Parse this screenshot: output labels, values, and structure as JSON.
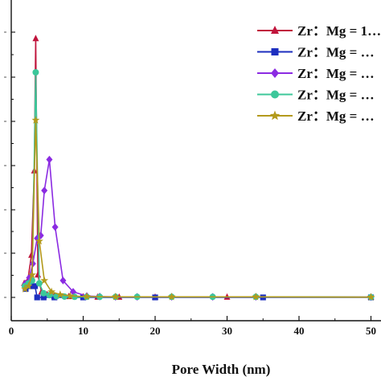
{
  "chart_data": {
    "type": "line",
    "xlabel": "Pore Width (nm)",
    "ylabel": "",
    "xlim": [
      0,
      52
    ],
    "ylim": [
      0,
      100
    ],
    "x_ticks": [
      "0",
      "10",
      "20",
      "30",
      "40",
      "50"
    ],
    "y_ticks": [
      "",
      "",
      "",
      "",
      "",
      "",
      "",
      ""
    ],
    "legend_position": "top-right",
    "grid": false,
    "series": [
      {
        "name": "Zr：Mg = 1…",
        "color": "#c0143c",
        "marker": "triangle",
        "points": [
          [
            1.8,
            5
          ],
          [
            2.3,
            6
          ],
          [
            2.8,
            15
          ],
          [
            3.2,
            45
          ],
          [
            3.4,
            92
          ],
          [
            3.7,
            8
          ],
          [
            4.2,
            2
          ],
          [
            5,
            1
          ],
          [
            6,
            0.5
          ],
          [
            8,
            0.3
          ],
          [
            10,
            0.2
          ],
          [
            12,
            0.1
          ],
          [
            15,
            0.1
          ],
          [
            20,
            0.1
          ],
          [
            30,
            0.1
          ],
          [
            50,
            0.1
          ]
        ]
      },
      {
        "name": "Zr：Mg = …",
        "color": "#1d2fbf",
        "marker": "square",
        "points": [
          [
            2.0,
            3
          ],
          [
            2.5,
            4
          ],
          [
            3.0,
            4
          ],
          [
            3.3,
            4
          ],
          [
            3.6,
            0
          ],
          [
            4.5,
            0
          ],
          [
            6,
            0
          ],
          [
            10,
            0
          ],
          [
            20,
            0
          ],
          [
            35,
            0
          ],
          [
            50,
            0
          ]
        ]
      },
      {
        "name": "Zr：Mg = …",
        "color": "#8b2be2",
        "marker": "diamond",
        "points": [
          [
            2.0,
            5
          ],
          [
            2.5,
            7
          ],
          [
            3.0,
            12
          ],
          [
            3.6,
            21
          ],
          [
            4.1,
            22
          ],
          [
            4.6,
            38
          ],
          [
            5.3,
            49
          ],
          [
            6.1,
            25
          ],
          [
            7.2,
            6
          ],
          [
            8.6,
            2
          ],
          [
            10.5,
            0.5
          ],
          [
            12.3,
            0.3
          ],
          [
            14.5,
            0.2
          ],
          [
            17.5,
            0.2
          ],
          [
            22.3,
            0.2
          ],
          [
            28.0,
            0.2
          ],
          [
            34.0,
            0.2
          ],
          [
            50,
            0.1
          ]
        ]
      },
      {
        "name": "Zr：Mg = …",
        "color": "#3cc79a",
        "marker": "circle",
        "points": [
          [
            1.9,
            4
          ],
          [
            2.4,
            5
          ],
          [
            2.9,
            6
          ],
          [
            3.4,
            80
          ],
          [
            3.9,
            5
          ],
          [
            4.5,
            1.5
          ],
          [
            5.3,
            0.8
          ],
          [
            6.3,
            0.4
          ],
          [
            7.4,
            0.3
          ],
          [
            8.8,
            0.2
          ],
          [
            10.5,
            0.2
          ],
          [
            12.3,
            0.2
          ],
          [
            14.5,
            0.2
          ],
          [
            17.5,
            0.2
          ],
          [
            22.3,
            0.2
          ],
          [
            28.0,
            0.2
          ],
          [
            34.0,
            0.2
          ],
          [
            50,
            0.1
          ]
        ]
      },
      {
        "name": "Zr：Mg = …",
        "color": "#b39a1c",
        "marker": "star",
        "points": [
          [
            1.9,
            3
          ],
          [
            2.4,
            4
          ],
          [
            2.9,
            8
          ],
          [
            3.4,
            63
          ],
          [
            3.9,
            20
          ],
          [
            4.6,
            6
          ],
          [
            5.6,
            2
          ],
          [
            6.8,
            1
          ],
          [
            8.2,
            0.5
          ],
          [
            10.5,
            0.3
          ],
          [
            14.5,
            0.2
          ],
          [
            22.3,
            0.2
          ],
          [
            34.0,
            0.2
          ],
          [
            50,
            0.1
          ]
        ]
      }
    ]
  }
}
